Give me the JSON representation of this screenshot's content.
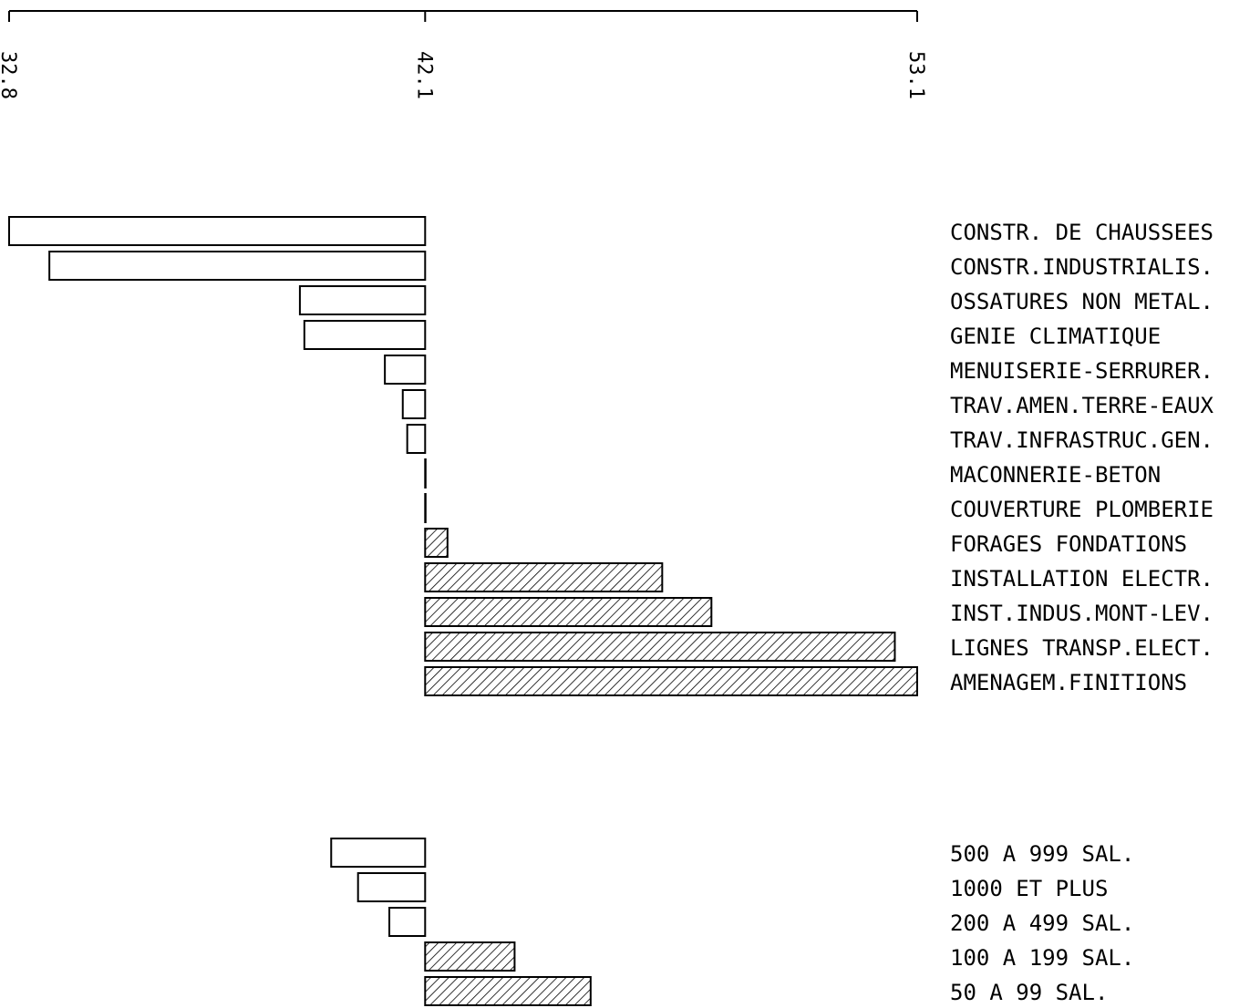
{
  "chart_data": {
    "type": "bar",
    "orientation": "horizontal",
    "baseline": 42.1,
    "xlim": [
      32.8,
      53.1
    ],
    "axis_ticks": [
      "32.8",
      "42.1",
      "53.1"
    ],
    "negative_fill": "#ffffff",
    "positive_fill": "hatched",
    "stroke": "#000000",
    "groups": [
      {
        "categories": [
          "CONSTR. DE CHAUSSEES",
          "CONSTR.INDUSTRIALIS.",
          "OSSATURES NON METAL.",
          "GENIE CLIMATIQUE",
          "MENUISERIE-SERRURER.",
          "TRAV.AMEN.TERRE-EAUX",
          "TRAV.INFRASTRUC.GEN.",
          "MACONNERIE-BETON",
          "COUVERTURE PLOMBERIE",
          "FORAGES FONDATIONS",
          "INSTALLATION ELECTR.",
          "INST.INDUS.MONT-LEV.",
          "LIGNES TRANSP.ELECT.",
          "AMENAGEM.FINITIONS"
        ],
        "values": [
          32.8,
          33.7,
          39.3,
          39.4,
          41.2,
          41.6,
          41.7,
          42.1,
          42.1,
          42.6,
          47.4,
          48.5,
          52.6,
          53.1
        ]
      },
      {
        "categories": [
          "500 A 999 SAL.",
          "1000 ET PLUS",
          "200 A 499 SAL.",
          "100 A 199 SAL.",
          "50 A 99 SAL."
        ],
        "values": [
          40.0,
          40.6,
          41.3,
          44.1,
          45.8
        ]
      }
    ]
  }
}
